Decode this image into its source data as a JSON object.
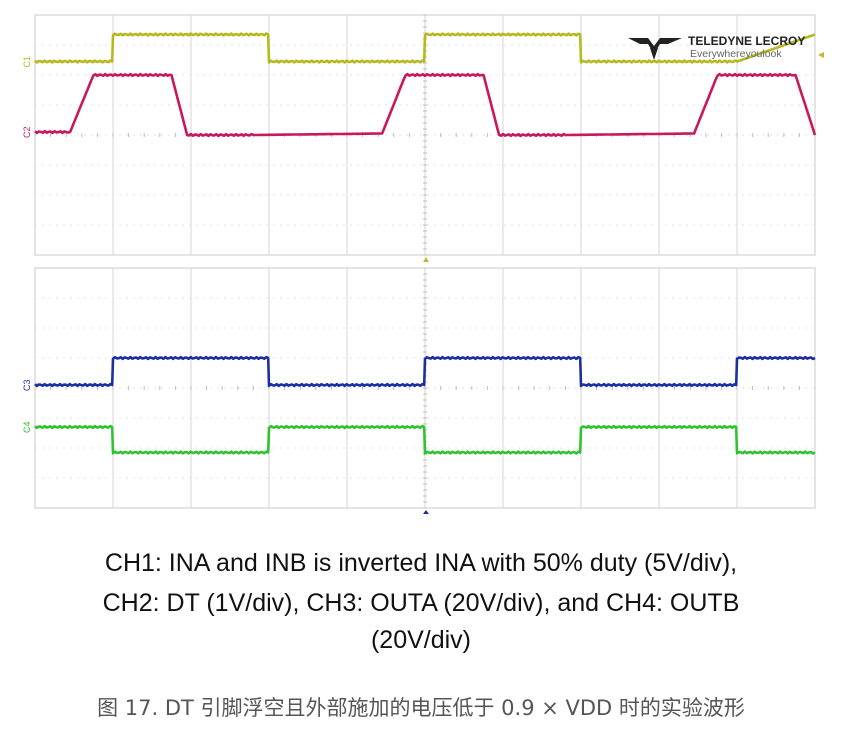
{
  "logo": {
    "brand": "TELEDYNE LECROY",
    "tagline": "Everywhereyoulook"
  },
  "caption": {
    "line1": "CH1: INA and INB is inverted INA with 50% duty (5V/div),",
    "line2": "CH2: DT (1V/div), CH3: OUTA (20V/div), and CH4: OUTB",
    "line3": "(20V/div)",
    "figure": "图 17. DT 引脚浮空且外部施加的电压低于 0.9 × VDD 时的实验波形"
  },
  "chart_data": [
    {
      "type": "line",
      "panel": "top",
      "grid": true,
      "x_divisions": 10,
      "y_divisions": 8,
      "series": [
        {
          "name": "C1",
          "color": "#b5b81e",
          "x": [
            0,
            0.99,
            1.0,
            2.99,
            3.0,
            4.99,
            5.0,
            6.99,
            7.0,
            9.0,
            10.0
          ],
          "y": [
            6.45,
            6.45,
            7.35,
            7.35,
            6.45,
            6.45,
            7.35,
            7.35,
            6.45,
            6.45,
            7.35
          ]
        },
        {
          "name": "C2",
          "color": "#c8185e",
          "x": [
            0,
            0.45,
            0.75,
            1.0,
            1.75,
            1.95,
            2.8,
            4.45,
            4.75,
            5.0,
            5.75,
            5.95,
            6.8,
            8.45,
            8.75,
            9.0,
            9.75,
            10.0
          ],
          "y": [
            4.1,
            4.1,
            6.0,
            6.0,
            6.0,
            4.0,
            4.0,
            4.05,
            6.0,
            6.0,
            6.0,
            4.0,
            4.0,
            4.05,
            6.0,
            6.0,
            6.0,
            4.0
          ]
        }
      ]
    },
    {
      "type": "line",
      "panel": "bottom",
      "grid": true,
      "x_divisions": 10,
      "y_divisions": 8,
      "series": [
        {
          "name": "C3",
          "color": "#1c2fa0",
          "x": [
            0,
            0.99,
            1.0,
            2.99,
            3.0,
            4.99,
            5.0,
            6.99,
            7.0,
            8.99,
            9.0,
            10.0
          ],
          "y": [
            4.1,
            4.1,
            5.0,
            5.0,
            4.1,
            4.1,
            5.0,
            5.0,
            4.1,
            4.1,
            5.0,
            5.0
          ]
        },
        {
          "name": "C4",
          "color": "#2fc42f",
          "x": [
            0,
            0.99,
            1.0,
            2.99,
            3.0,
            4.99,
            5.0,
            6.99,
            7.0,
            8.99,
            9.0,
            10.0
          ],
          "y": [
            2.7,
            2.7,
            1.85,
            1.85,
            2.7,
            2.7,
            1.85,
            1.85,
            2.7,
            2.7,
            1.85,
            1.85
          ]
        }
      ]
    }
  ]
}
